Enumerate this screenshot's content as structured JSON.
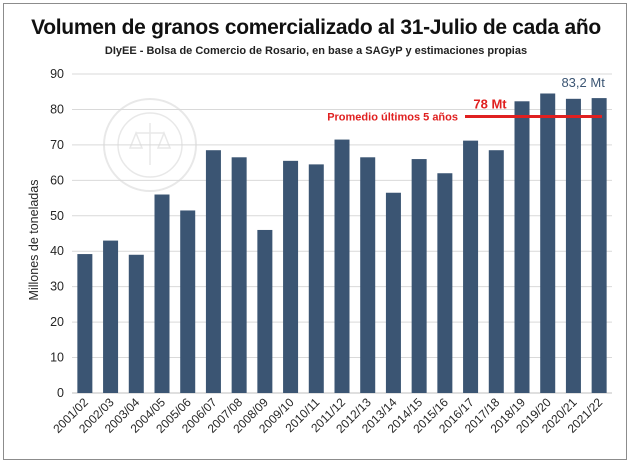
{
  "title": "Volumen de granos comercializado al 31-Julio de cada año",
  "subtitle": "DIyEE - Bolsa de Comercio de Rosario, en base a SAGyP y estimaciones propias",
  "watermark_text": "BOLSA DE COMERCIO DE ROSARIO",
  "chart_data": {
    "type": "bar",
    "categories": [
      "2001/02",
      "2002/03",
      "2003/04",
      "2004/05",
      "2005/06",
      "2006/07",
      "2007/08",
      "2008/09",
      "2009/10",
      "2010/11",
      "2011/12",
      "2012/13",
      "2013/14",
      "2014/15",
      "2015/16",
      "2016/17",
      "2017/18",
      "2018/19",
      "2019/20",
      "2020/21",
      "2021/22"
    ],
    "values": [
      39.2,
      43,
      39,
      56,
      51.5,
      68.5,
      66.5,
      46,
      65.5,
      64.5,
      71.5,
      66.5,
      56.5,
      66,
      62,
      71.2,
      68.5,
      82.3,
      84.5,
      83,
      83.2
    ],
    "ylabel": "Millones de toneladas",
    "ylim": [
      0,
      90
    ],
    "yticks": [
      0,
      10,
      20,
      30,
      40,
      50,
      60,
      70,
      80,
      90
    ],
    "bar_color": "#3b5573",
    "reference_line": {
      "value": 78,
      "label": "Promedio últimos 5 años",
      "value_label": "78 Mt",
      "color": "#e02020"
    },
    "last_value_label": "83,2 Mt",
    "last_value_color": "#3b5573",
    "grid": true
  }
}
